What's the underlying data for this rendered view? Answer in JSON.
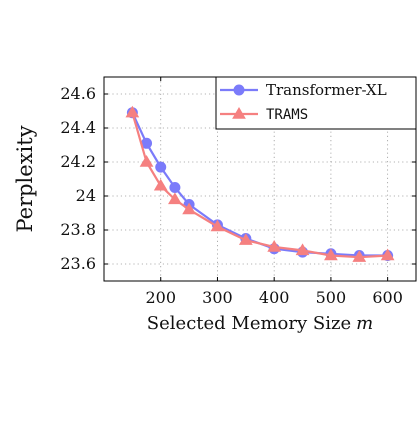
{
  "chart_data": {
    "type": "line",
    "title": "",
    "xlabel": "Selected Memory Size",
    "xlabel_var": "m",
    "ylabel": "Perplexity",
    "xlim": [
      100,
      650
    ],
    "ylim": [
      23.5,
      24.7
    ],
    "xticks": [
      200,
      300,
      400,
      500,
      600
    ],
    "xtick_labels": [
      "200",
      "300",
      "400",
      "500",
      "600"
    ],
    "yticks": [
      23.6,
      23.8,
      24.0,
      24.2,
      24.4,
      24.6
    ],
    "ytick_labels": [
      "23.6",
      "23.8",
      "24",
      "24.2",
      "24.4",
      "24.6"
    ],
    "grid": true,
    "legend_position": "top-right",
    "series": [
      {
        "name": "Transformer-XL",
        "marker": "circle",
        "color": "#7b7bfa",
        "x": [
          150,
          175,
          200,
          225,
          250,
          300,
          350,
          400,
          450,
          500,
          550,
          600
        ],
        "y": [
          24.49,
          24.31,
          24.17,
          24.05,
          23.95,
          23.83,
          23.75,
          23.69,
          23.67,
          23.66,
          23.65,
          23.65
        ]
      },
      {
        "name": "TRAMS",
        "marker": "triangle",
        "color": "#f58080",
        "x": [
          150,
          175,
          200,
          225,
          250,
          300,
          350,
          400,
          450,
          500,
          550,
          600
        ],
        "y": [
          24.49,
          24.2,
          24.06,
          23.98,
          23.92,
          23.82,
          23.74,
          23.7,
          23.68,
          23.65,
          23.64,
          23.65
        ]
      }
    ]
  }
}
